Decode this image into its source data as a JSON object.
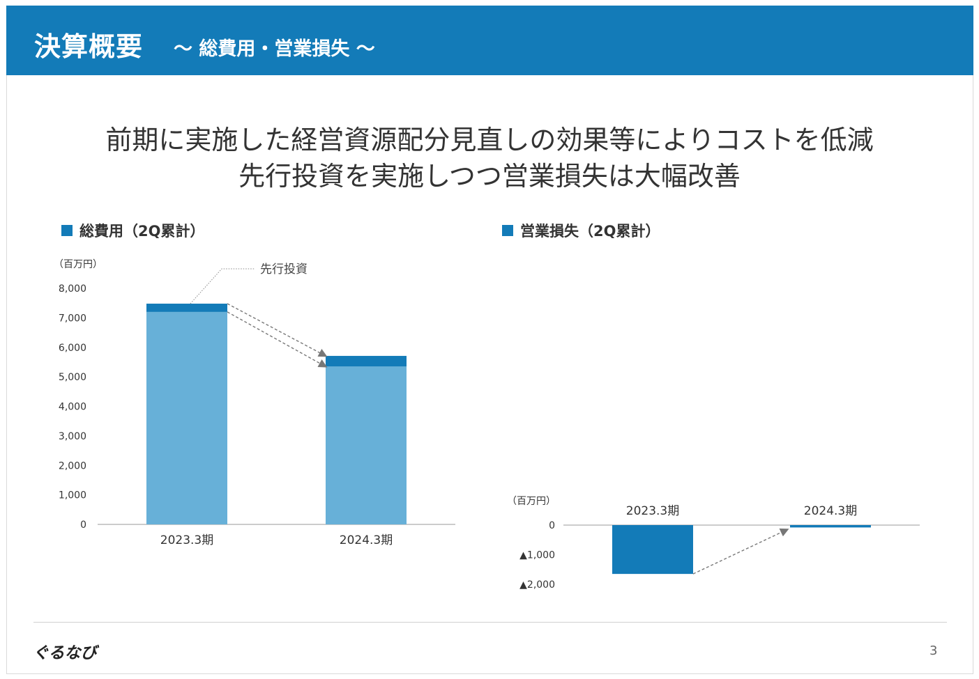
{
  "header": {
    "title": "決算概要",
    "subtitle": "〜 総費用・営業損失 〜"
  },
  "headline": {
    "line1": "前期に実施した経営資源配分見直しの効果等によりコストを低減",
    "line2": "先行投資を実施しつつ営業損失は大幅改善"
  },
  "colors": {
    "accent": "#137bb8",
    "light": "#67b0d8"
  },
  "chart_data": [
    {
      "type": "bar",
      "title": "総費用（2Q累計）",
      "unit_label": "（百万円）",
      "categories": [
        "2023.3期",
        "2024.3期"
      ],
      "series": [
        {
          "name": "",
          "values": [
            7200,
            5350
          ],
          "color": "#67b0d8"
        },
        {
          "name": "先行投資",
          "values": [
            280,
            360
          ],
          "color": "#137bb8"
        }
      ],
      "stacked": true,
      "ylim": [
        0,
        8000
      ],
      "yticks": [
        0,
        1000,
        2000,
        3000,
        4000,
        5000,
        6000,
        7000,
        8000
      ],
      "ytick_labels": [
        "0",
        "1,000",
        "2,000",
        "3,000",
        "4,000",
        "5,000",
        "6,000",
        "7,000",
        "8,000"
      ],
      "annotation": "先行投資"
    },
    {
      "type": "bar",
      "title": "営業損失（2Q累計）",
      "unit_label": "（百万円）",
      "categories": [
        "2023.3期",
        "2024.3期"
      ],
      "series": [
        {
          "name": "",
          "values": [
            -1650,
            -80
          ],
          "color": "#137bb8"
        }
      ],
      "ylim": [
        -2000,
        0
      ],
      "yticks": [
        0,
        -1000,
        -2000
      ],
      "ytick_labels": [
        "0",
        "▲1,000",
        "▲2,000"
      ]
    }
  ],
  "footer": {
    "logo": "ぐるなび",
    "page": "3"
  }
}
